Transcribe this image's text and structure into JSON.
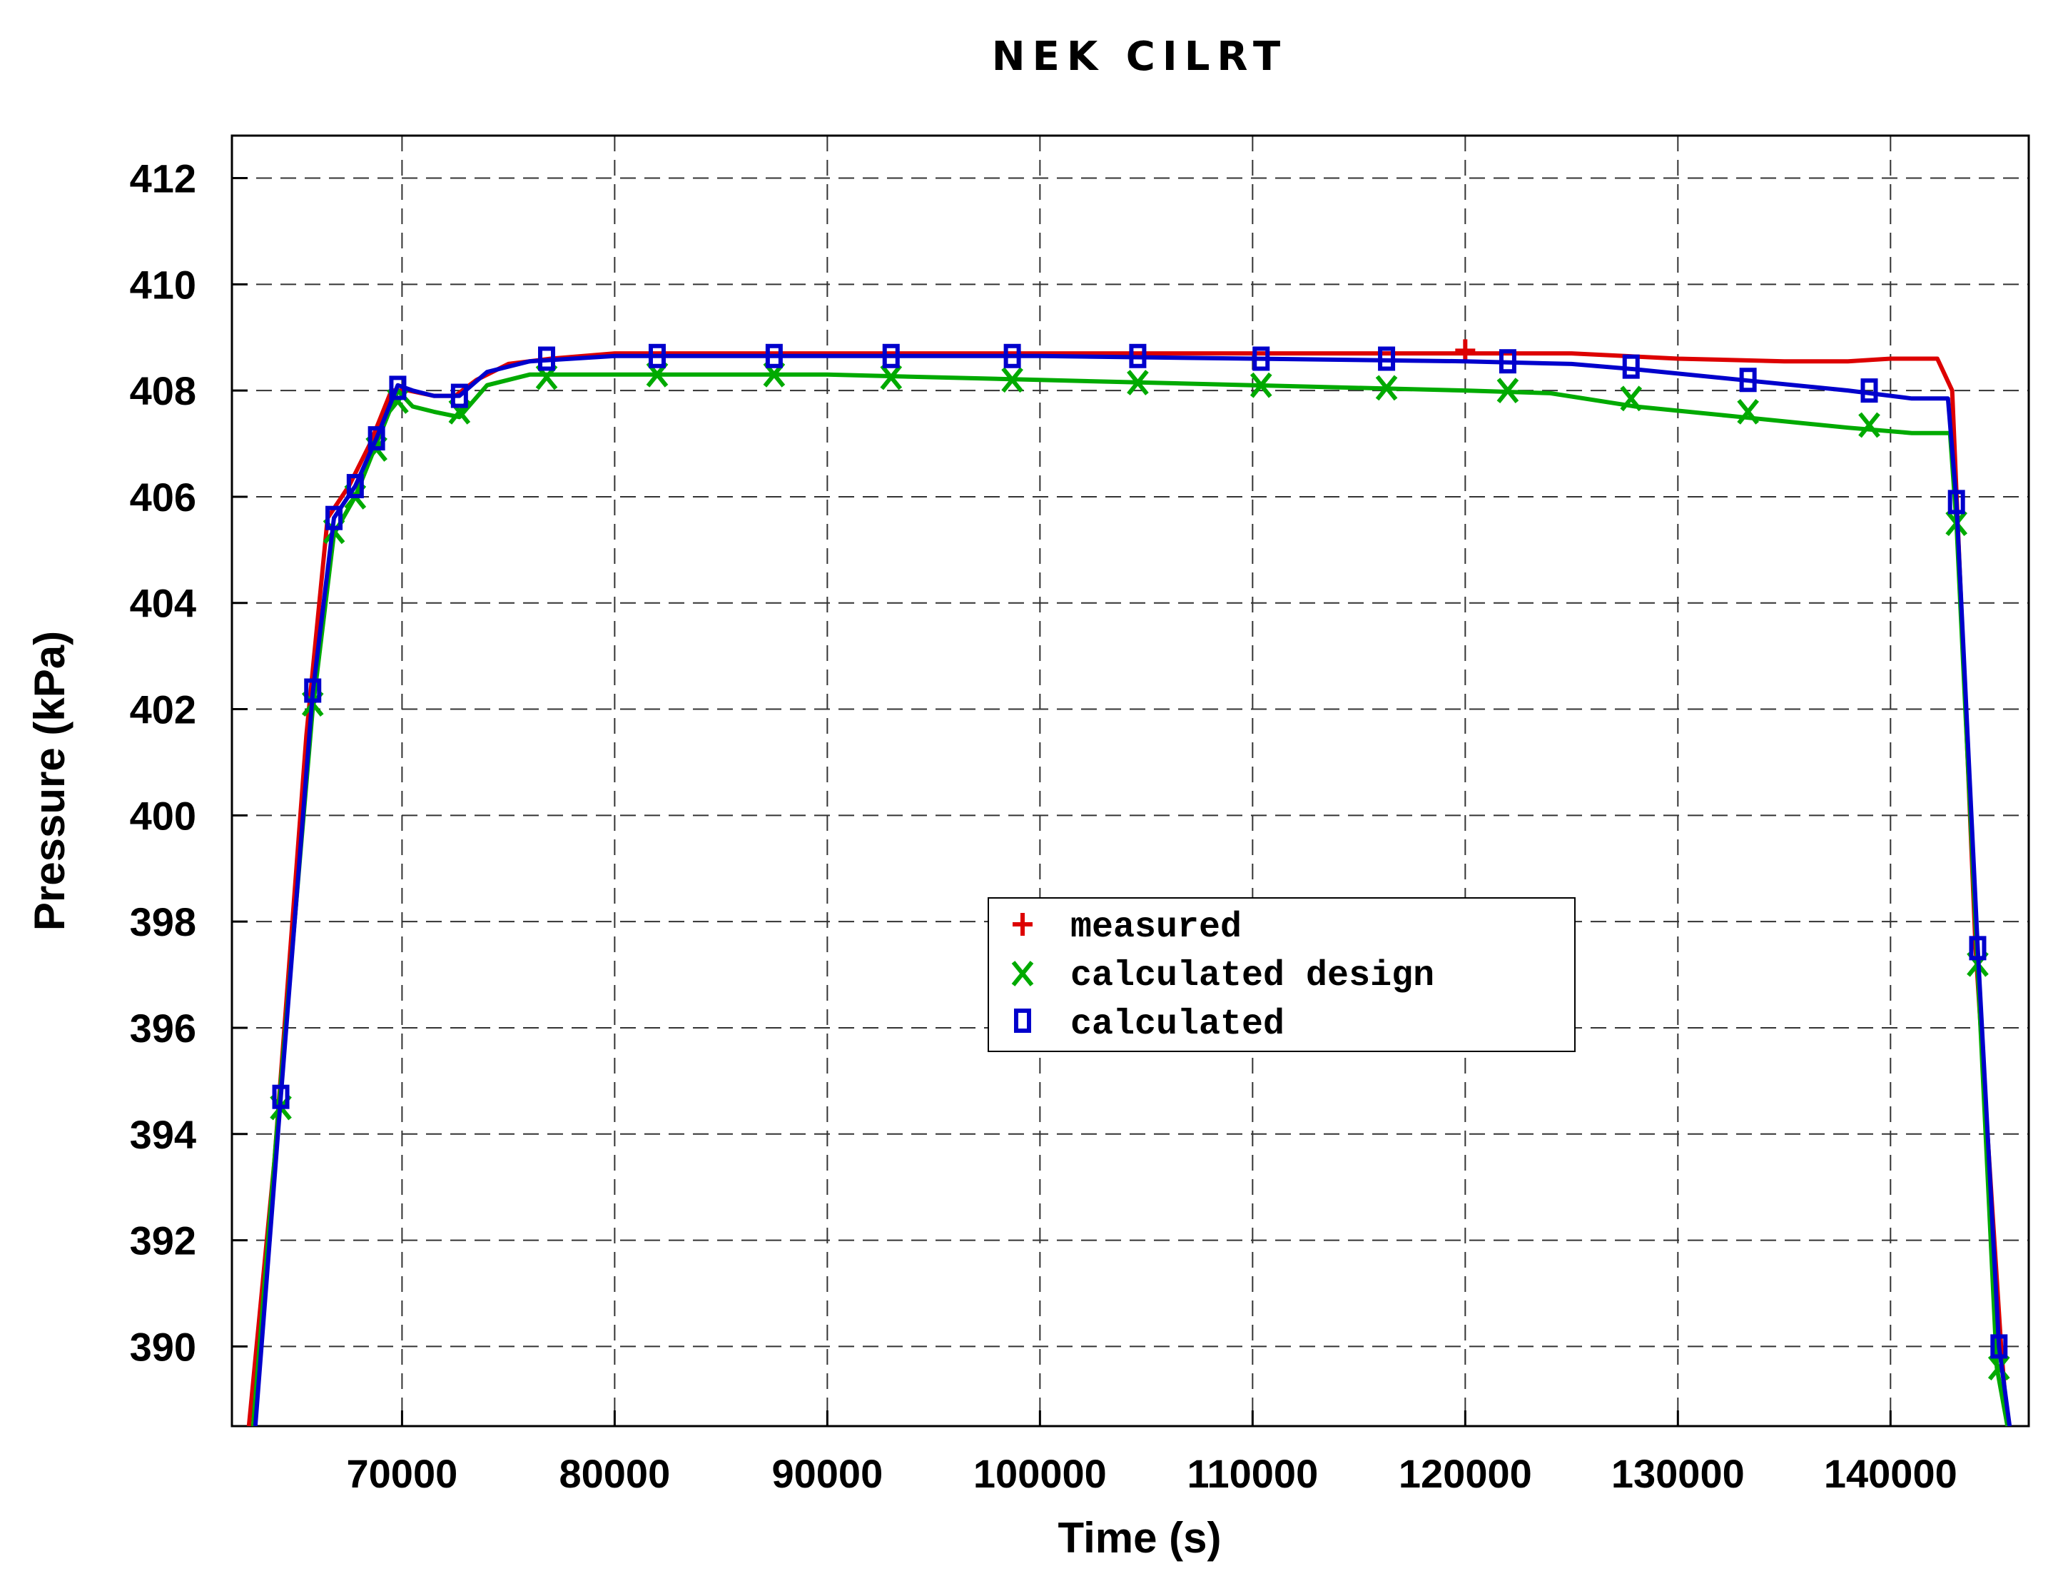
{
  "chart_data": {
    "type": "line",
    "title": "NEK CILRT",
    "xlabel": "Time (s)",
    "ylabel": "Pressure (kPa)",
    "xlim": [
      62000,
      146500
    ],
    "ylim": [
      388.5,
      412.8
    ],
    "x_ticks": [
      "70000",
      "80000",
      "90000",
      "100000",
      "110000",
      "120000",
      "130000",
      "140000"
    ],
    "x_tick_values": [
      70000,
      80000,
      90000,
      100000,
      110000,
      120000,
      130000,
      140000
    ],
    "y_ticks": [
      "390",
      "392",
      "394",
      "396",
      "398",
      "400",
      "402",
      "404",
      "406",
      "408",
      "410",
      "412"
    ],
    "y_tick_values": [
      390,
      392,
      394,
      396,
      398,
      400,
      402,
      404,
      406,
      408,
      410,
      412
    ],
    "grid": true,
    "legend_position": "center-right",
    "series": [
      {
        "name": "measured",
        "color": "#dd0000",
        "marker": "plus",
        "x": [
          62800,
          64000,
          65500,
          66500,
          67500,
          68500,
          69500,
          70300,
          71500,
          72500,
          73500,
          75000,
          77000,
          80000,
          85000,
          90000,
          100000,
          110000,
          120000,
          125000,
          130000,
          135000,
          138000,
          140000,
          142200,
          142900,
          144000,
          145200,
          145500
        ],
        "y": [
          388.5,
          393.5,
          401.5,
          405.6,
          406.2,
          407.0,
          408.0,
          408.0,
          407.9,
          407.9,
          408.2,
          408.5,
          408.6,
          408.7,
          408.7,
          408.7,
          408.7,
          408.7,
          408.7,
          408.7,
          408.6,
          408.55,
          408.55,
          408.6,
          408.6,
          408.0,
          397.5,
          390.0,
          388.5
        ],
        "marker_x": [
          120000
        ],
        "marker_y": [
          408.75
        ]
      },
      {
        "name": "calculated design",
        "color": "#00aa00",
        "marker": "x",
        "x": [
          63000,
          64200,
          65800,
          66800,
          67800,
          68800,
          69800,
          70500,
          71500,
          72700,
          74000,
          76000,
          80000,
          90000,
          100000,
          110000,
          120000,
          124000,
          128000,
          133000,
          138000,
          141000,
          142800,
          143100,
          144100,
          145000,
          145500
        ],
        "y": [
          388.5,
          394.5,
          402.0,
          405.3,
          406.0,
          407.0,
          408.0,
          407.7,
          407.6,
          407.5,
          408.1,
          408.3,
          408.3,
          408.3,
          408.2,
          408.1,
          408.0,
          407.95,
          407.7,
          407.5,
          407.3,
          407.2,
          407.2,
          405.5,
          397.1,
          389.6,
          388.5
        ],
        "marker_x": [
          64300,
          65800,
          66800,
          67800,
          68800,
          69800,
          72700,
          76800,
          82000,
          87500,
          93000,
          98700,
          104600,
          110400,
          116300,
          122000,
          127800,
          133300,
          139000,
          143100,
          144100,
          145100
        ],
        "marker_y": [
          394.5,
          402.1,
          405.35,
          406.0,
          406.9,
          407.8,
          407.6,
          408.25,
          408.3,
          408.3,
          408.25,
          408.2,
          408.15,
          408.1,
          408.05,
          408.0,
          407.85,
          407.6,
          407.35,
          405.5,
          397.2,
          389.6
        ]
      },
      {
        "name": "calculated",
        "color": "#0000cc",
        "marker": "square",
        "x": [
          63100,
          64300,
          65800,
          66800,
          67800,
          68800,
          69800,
          70500,
          71500,
          72700,
          74000,
          76000,
          80000,
          90000,
          100000,
          110000,
          120000,
          125000,
          128000,
          133000,
          138000,
          141000,
          142700,
          143100,
          144100,
          145100,
          145600
        ],
        "y": [
          388.5,
          394.7,
          402.3,
          405.6,
          406.2,
          407.1,
          408.1,
          408.0,
          407.9,
          407.9,
          408.35,
          408.55,
          408.65,
          408.65,
          408.65,
          408.6,
          408.55,
          408.5,
          408.4,
          408.2,
          408.0,
          407.85,
          407.85,
          405.9,
          397.5,
          390.0,
          388.5
        ],
        "marker_x": [
          64300,
          65800,
          66800,
          67800,
          68800,
          69800,
          72700,
          76800,
          82000,
          87500,
          93000,
          98700,
          104600,
          110400,
          116300,
          122000,
          127800,
          133300,
          139000,
          143100,
          144100,
          145100
        ],
        "marker_y": [
          394.7,
          402.35,
          405.6,
          406.2,
          407.1,
          408.05,
          407.9,
          408.6,
          408.65,
          408.65,
          408.65,
          408.65,
          408.65,
          408.6,
          408.6,
          408.55,
          408.45,
          408.2,
          408.0,
          405.9,
          397.5,
          390.0
        ]
      }
    ]
  }
}
